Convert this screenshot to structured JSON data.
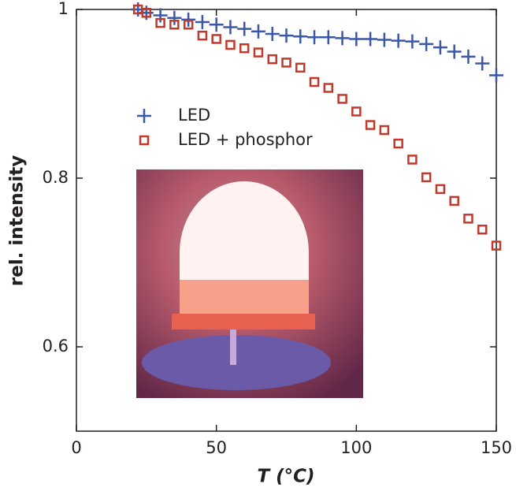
{
  "chart_data": {
    "type": "scatter",
    "x": [
      22,
      25,
      30,
      35,
      40,
      45,
      50,
      55,
      60,
      65,
      70,
      75,
      80,
      85,
      90,
      95,
      100,
      105,
      110,
      115,
      120,
      125,
      130,
      135,
      140,
      145,
      150
    ],
    "series": [
      {
        "name": "LED",
        "color": "#3b57a7",
        "marker": "plus",
        "values": [
          1.0,
          0.996,
          0.993,
          0.99,
          0.988,
          0.985,
          0.982,
          0.979,
          0.977,
          0.974,
          0.971,
          0.969,
          0.968,
          0.967,
          0.967,
          0.966,
          0.965,
          0.965,
          0.964,
          0.963,
          0.962,
          0.959,
          0.955,
          0.95,
          0.944,
          0.936,
          0.922
        ]
      },
      {
        "name": "LED + phosphor",
        "color": "#c0392b",
        "marker": "square",
        "values": [
          1.0,
          0.996,
          0.984,
          0.982,
          0.982,
          0.969,
          0.965,
          0.958,
          0.954,
          0.949,
          0.941,
          0.937,
          0.931,
          0.914,
          0.907,
          0.894,
          0.879,
          0.863,
          0.857,
          0.841,
          0.822,
          0.801,
          0.787,
          0.773,
          0.752,
          0.739,
          0.72
        ]
      }
    ],
    "xlabel": "T (°C)",
    "ylabel": "rel. intensity",
    "xlim": [
      0,
      150
    ],
    "xticks": [
      0,
      50,
      100,
      150
    ],
    "ylim": [
      0.5,
      1
    ],
    "yticks": [
      0.6,
      0.8,
      1
    ]
  }
}
